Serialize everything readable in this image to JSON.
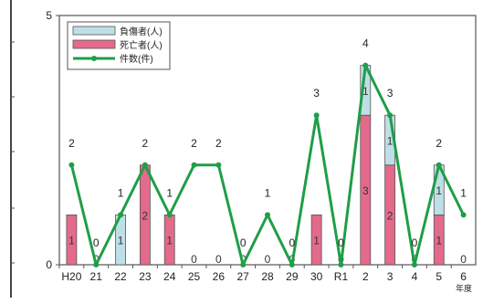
{
  "chart_data": {
    "type": "bar",
    "categories": [
      "H20",
      "21",
      "22",
      "23",
      "24",
      "25",
      "26",
      "27",
      "28",
      "29",
      "30",
      "R1",
      "2",
      "3",
      "4",
      "5",
      "6"
    ],
    "x_axis_unit": "年度",
    "ylim": [
      0,
      5
    ],
    "y_ticks": [
      "0",
      "5"
    ],
    "stacked": true,
    "series": [
      {
        "name": "死亡者(人)",
        "type": "bar",
        "color": "#e46a8c",
        "values": [
          1,
          0,
          0,
          2,
          1,
          0,
          0,
          0,
          0,
          0,
          1,
          0,
          3,
          2,
          0,
          1,
          0
        ]
      },
      {
        "name": "負傷者(人)",
        "type": "bar",
        "color": "#bfdfe6",
        "values": [
          0,
          0,
          1,
          0,
          0,
          0,
          0,
          0,
          0,
          0,
          0,
          0,
          1,
          1,
          0,
          1,
          0
        ]
      },
      {
        "name": "件数(件)",
        "type": "line",
        "color": "#1f9e48",
        "values": [
          2,
          0,
          1,
          2,
          1,
          2,
          2,
          0,
          1,
          0,
          3,
          0,
          4,
          3,
          0,
          2,
          1
        ]
      }
    ],
    "grid": false,
    "legend_position": "top-left"
  }
}
